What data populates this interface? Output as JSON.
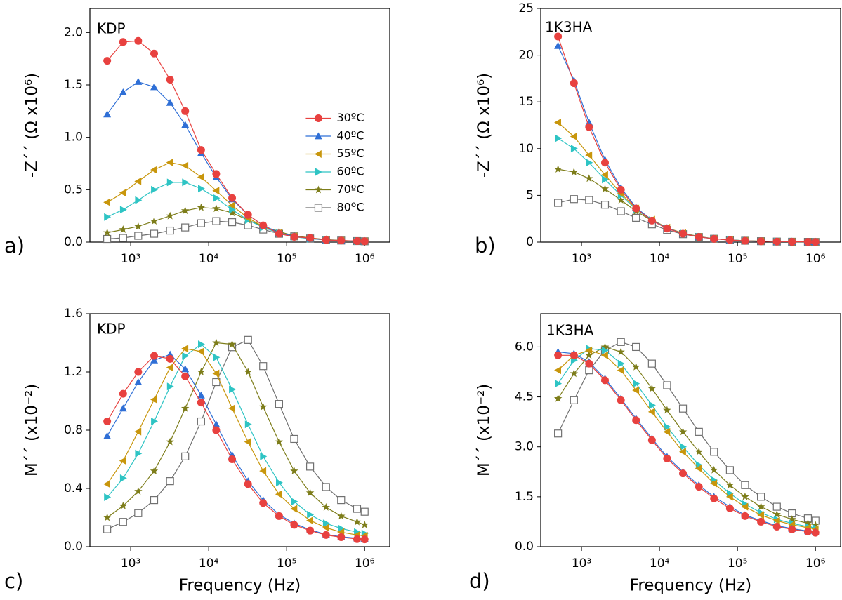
{
  "chart_data": [
    {
      "type": "line",
      "panel_label": "a)",
      "annotation": "KDP",
      "ylabel": "-Z´´ (Ω x10⁶)",
      "log_x": true,
      "legend": "right",
      "x": [
        500,
        800,
        1250,
        2000,
        3200,
        5000,
        8000,
        12500,
        20000,
        32000,
        50000,
        80000,
        125000,
        200000,
        320000,
        500000,
        800000,
        1000000
      ],
      "xlim": [
        300,
        2100000
      ],
      "xticks": [
        {
          "value": 1000,
          "label": "10³"
        },
        {
          "value": 10000,
          "label": "10⁴"
        },
        {
          "value": 100000,
          "label": "10⁵"
        },
        {
          "value": 1000000,
          "label": "10⁶"
        }
      ],
      "ylim": [
        0,
        2.23
      ],
      "yticks": [
        {
          "value": 0,
          "label": "0.0"
        },
        {
          "value": 0.5,
          "label": "0.5"
        },
        {
          "value": 1,
          "label": "1.0"
        },
        {
          "value": 1.5,
          "label": "1.5"
        },
        {
          "value": 2,
          "label": "2.0"
        }
      ],
      "series": [
        {
          "name": "30ºC",
          "color": "#e8413f",
          "marker": "circle",
          "values": [
            1.73,
            1.91,
            1.92,
            1.8,
            1.55,
            1.25,
            0.88,
            0.65,
            0.42,
            0.26,
            0.16,
            0.08,
            0.05,
            0.04,
            0.02,
            0.015,
            0.01,
            0.008
          ]
        },
        {
          "name": "40ºC",
          "color": "#2f6fd6",
          "marker": "triangle-up",
          "values": [
            1.22,
            1.43,
            1.53,
            1.48,
            1.33,
            1.12,
            0.85,
            0.62,
            0.41,
            0.26,
            0.16,
            0.09,
            0.055,
            0.035,
            0.02,
            0.014,
            0.01,
            0.008
          ]
        },
        {
          "name": "55ºC",
          "color": "#c8960c",
          "marker": "triangle-left",
          "values": [
            0.38,
            0.47,
            0.58,
            0.69,
            0.76,
            0.73,
            0.62,
            0.49,
            0.35,
            0.23,
            0.15,
            0.09,
            0.055,
            0.035,
            0.02,
            0.014,
            0.01,
            0.008
          ]
        },
        {
          "name": "60ºC",
          "color": "#2ec4c4",
          "marker": "triangle-right",
          "values": [
            0.24,
            0.31,
            0.4,
            0.5,
            0.57,
            0.57,
            0.51,
            0.42,
            0.31,
            0.21,
            0.14,
            0.085,
            0.05,
            0.032,
            0.02,
            0.013,
            0.009,
            0.007
          ]
        },
        {
          "name": "70ºC",
          "color": "#7d7d1a",
          "marker": "star",
          "values": [
            0.09,
            0.12,
            0.15,
            0.2,
            0.25,
            0.3,
            0.33,
            0.32,
            0.28,
            0.21,
            0.15,
            0.1,
            0.06,
            0.04,
            0.025,
            0.016,
            0.01,
            0.008
          ]
        },
        {
          "name": "80ºC",
          "color": "#707070",
          "marker": "open-square",
          "values": [
            0.03,
            0.04,
            0.06,
            0.08,
            0.11,
            0.14,
            0.18,
            0.2,
            0.19,
            0.16,
            0.12,
            0.08,
            0.055,
            0.035,
            0.022,
            0.015,
            0.01,
            0.008
          ]
        }
      ]
    },
    {
      "type": "line",
      "panel_label": "b)",
      "annotation": "1K3HA",
      "ylabel": "-Z´´ (Ω x10⁶)",
      "log_x": true,
      "x": [
        500,
        800,
        1250,
        2000,
        3200,
        5000,
        8000,
        12500,
        20000,
        32000,
        50000,
        80000,
        125000,
        200000,
        320000,
        500000,
        800000,
        1000000
      ],
      "xlim": [
        300,
        2100000
      ],
      "xticks": [
        {
          "value": 1000,
          "label": "10³"
        },
        {
          "value": 10000,
          "label": "10⁴"
        },
        {
          "value": 100000,
          "label": "10⁵"
        },
        {
          "value": 1000000,
          "label": "10⁶"
        }
      ],
      "ylim": [
        0,
        25
      ],
      "yticks": [
        0,
        5,
        10,
        15,
        20,
        25
      ],
      "series": [
        {
          "color": "#e8413f",
          "marker": "circle",
          "values": [
            22.0,
            17.0,
            12.3,
            8.5,
            5.6,
            3.6,
            2.3,
            1.45,
            0.9,
            0.55,
            0.35,
            0.22,
            0.14,
            0.09,
            0.06,
            0.04,
            0.03,
            0.02
          ]
        },
        {
          "color": "#2f6fd6",
          "marker": "triangle-up",
          "values": [
            21.0,
            17.3,
            12.8,
            8.8,
            5.8,
            3.7,
            2.35,
            1.5,
            0.9,
            0.56,
            0.35,
            0.22,
            0.14,
            0.09,
            0.06,
            0.04,
            0.03,
            0.02
          ]
        },
        {
          "color": "#c8960c",
          "marker": "triangle-left",
          "values": [
            12.8,
            11.3,
            9.3,
            7.2,
            5.2,
            3.6,
            2.4,
            1.55,
            0.95,
            0.58,
            0.36,
            0.22,
            0.15,
            0.1,
            0.06,
            0.04,
            0.03,
            0.02
          ]
        },
        {
          "color": "#2ec4c4",
          "marker": "triangle-right",
          "values": [
            11.1,
            10.0,
            8.5,
            6.7,
            5.0,
            3.5,
            2.35,
            1.5,
            0.95,
            0.58,
            0.36,
            0.23,
            0.15,
            0.1,
            0.06,
            0.04,
            0.03,
            0.02
          ]
        },
        {
          "color": "#7d7d1a",
          "marker": "star",
          "values": [
            7.8,
            7.5,
            6.8,
            5.7,
            4.5,
            3.3,
            2.3,
            1.5,
            0.95,
            0.6,
            0.36,
            0.23,
            0.15,
            0.1,
            0.06,
            0.04,
            0.03,
            0.02
          ]
        },
        {
          "color": "#707070",
          "marker": "open-square",
          "values": [
            4.2,
            4.6,
            4.5,
            4.0,
            3.3,
            2.6,
            1.9,
            1.3,
            0.85,
            0.55,
            0.36,
            0.23,
            0.15,
            0.1,
            0.06,
            0.04,
            0.03,
            0.02
          ]
        }
      ]
    },
    {
      "type": "line",
      "panel_label": "c)",
      "annotation": "KDP",
      "ylabel": "M´´ (x10⁻²)",
      "xlabel": "Frequency (Hz)",
      "log_x": true,
      "x": [
        500,
        800,
        1250,
        2000,
        3200,
        5000,
        8000,
        12500,
        20000,
        32000,
        50000,
        80000,
        125000,
        200000,
        320000,
        500000,
        800000,
        1000000
      ],
      "xlim": [
        300,
        2100000
      ],
      "xticks": [
        {
          "value": 1000,
          "label": "10³"
        },
        {
          "value": 10000,
          "label": "10⁴"
        },
        {
          "value": 100000,
          "label": "10⁵"
        },
        {
          "value": 1000000,
          "label": "10⁶"
        }
      ],
      "ylim": [
        0,
        1.6
      ],
      "yticks": [
        {
          "value": 0,
          "label": "0.0"
        },
        0.4,
        0.8,
        1.2,
        1.6
      ],
      "series": [
        {
          "color": "#e8413f",
          "marker": "circle",
          "values": [
            0.86,
            1.05,
            1.2,
            1.31,
            1.29,
            1.17,
            0.99,
            0.8,
            0.6,
            0.43,
            0.3,
            0.21,
            0.15,
            0.11,
            0.08,
            0.065,
            0.052,
            0.05
          ]
        },
        {
          "color": "#2f6fd6",
          "marker": "triangle-up",
          "values": [
            0.76,
            0.95,
            1.13,
            1.28,
            1.32,
            1.22,
            1.04,
            0.84,
            0.63,
            0.45,
            0.32,
            0.22,
            0.16,
            0.115,
            0.085,
            0.068,
            0.058,
            0.055
          ]
        },
        {
          "color": "#c8960c",
          "marker": "triangle-left",
          "values": [
            0.43,
            0.59,
            0.79,
            1.01,
            1.23,
            1.36,
            1.34,
            1.19,
            0.95,
            0.72,
            0.52,
            0.36,
            0.26,
            0.18,
            0.13,
            0.1,
            0.08,
            0.075
          ]
        },
        {
          "color": "#2ec4c4",
          "marker": "triangle-right",
          "values": [
            0.34,
            0.47,
            0.64,
            0.86,
            1.1,
            1.31,
            1.39,
            1.3,
            1.08,
            0.84,
            0.62,
            0.44,
            0.31,
            0.22,
            0.16,
            0.125,
            0.1,
            0.09
          ]
        },
        {
          "color": "#7d7d1a",
          "marker": "star",
          "values": [
            0.2,
            0.28,
            0.38,
            0.52,
            0.72,
            0.95,
            1.2,
            1.4,
            1.39,
            1.2,
            0.96,
            0.72,
            0.52,
            0.37,
            0.27,
            0.21,
            0.17,
            0.15
          ]
        },
        {
          "color": "#707070",
          "marker": "open-square",
          "values": [
            0.12,
            0.17,
            0.23,
            0.32,
            0.45,
            0.62,
            0.86,
            1.13,
            1.37,
            1.42,
            1.24,
            0.98,
            0.74,
            0.55,
            0.41,
            0.32,
            0.26,
            0.24
          ]
        }
      ]
    },
    {
      "type": "line",
      "panel_label": "d)",
      "annotation": "1K3HA",
      "ylabel": "M´´ (x10⁻²)",
      "xlabel": "Frequency (Hz)",
      "log_x": true,
      "x": [
        500,
        800,
        1250,
        2000,
        3200,
        5000,
        8000,
        12500,
        20000,
        32000,
        50000,
        80000,
        125000,
        200000,
        320000,
        500000,
        800000,
        1000000
      ],
      "xlim": [
        300,
        2100000
      ],
      "xticks": [
        {
          "value": 1000,
          "label": "10³"
        },
        {
          "value": 10000,
          "label": "10⁴"
        },
        {
          "value": 100000,
          "label": "10⁵"
        },
        {
          "value": 1000000,
          "label": "10⁶"
        }
      ],
      "ylim": [
        0,
        7
      ],
      "yticks": [
        {
          "value": 0,
          "label": "0.0"
        },
        1.5,
        {
          "value": 3,
          "label": "3.0"
        },
        4.5,
        {
          "value": 6,
          "label": "6.0"
        }
      ],
      "series": [
        {
          "color": "#e8413f",
          "marker": "circle",
          "values": [
            5.75,
            5.75,
            5.5,
            5.0,
            4.4,
            3.8,
            3.2,
            2.65,
            2.2,
            1.8,
            1.45,
            1.15,
            0.92,
            0.75,
            0.6,
            0.52,
            0.45,
            0.42
          ]
        },
        {
          "color": "#2f6fd6",
          "marker": "triangle-up",
          "values": [
            5.85,
            5.8,
            5.55,
            5.05,
            4.45,
            3.85,
            3.25,
            2.7,
            2.25,
            1.85,
            1.5,
            1.2,
            0.95,
            0.78,
            0.63,
            0.54,
            0.47,
            0.44
          ]
        },
        {
          "color": "#c8960c",
          "marker": "triangle-left",
          "values": [
            5.3,
            5.75,
            5.9,
            5.75,
            5.3,
            4.7,
            4.05,
            3.45,
            2.85,
            2.35,
            1.9,
            1.5,
            1.2,
            0.95,
            0.78,
            0.66,
            0.57,
            0.53
          ]
        },
        {
          "color": "#2ec4c4",
          "marker": "triangle-right",
          "values": [
            4.9,
            5.6,
            5.95,
            5.9,
            5.5,
            4.9,
            4.25,
            3.6,
            3.0,
            2.45,
            2.0,
            1.6,
            1.28,
            1.02,
            0.82,
            0.7,
            0.6,
            0.56
          ]
        },
        {
          "color": "#7d7d1a",
          "marker": "star",
          "values": [
            4.45,
            5.2,
            5.75,
            6.0,
            5.85,
            5.4,
            4.75,
            4.1,
            3.45,
            2.85,
            2.3,
            1.85,
            1.5,
            1.2,
            0.97,
            0.82,
            0.7,
            0.65
          ]
        },
        {
          "color": "#707070",
          "marker": "open-square",
          "values": [
            3.4,
            4.4,
            5.3,
            5.9,
            6.15,
            6.0,
            5.5,
            4.85,
            4.15,
            3.45,
            2.85,
            2.3,
            1.85,
            1.5,
            1.2,
            1.0,
            0.85,
            0.78
          ]
        }
      ]
    }
  ]
}
